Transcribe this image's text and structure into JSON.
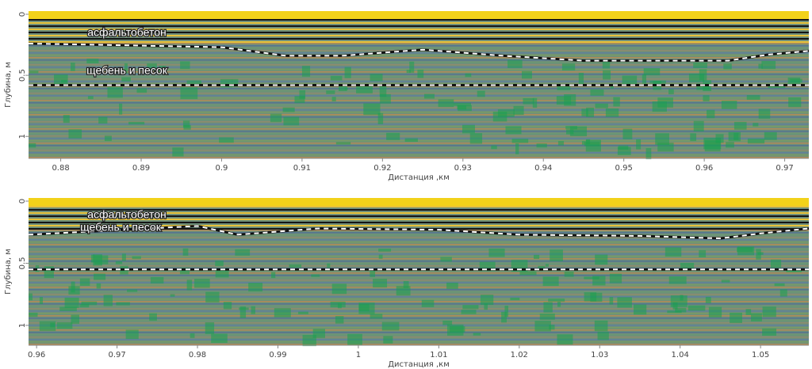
{
  "chart_data": [
    {
      "type": "line",
      "xlabel": "Дистанция ,км",
      "ylabel": "Глубина, м",
      "xlim": [
        0.876,
        0.973
      ],
      "ylim": [
        0,
        1.18
      ],
      "xticks": [
        0.88,
        0.89,
        0.9,
        0.91,
        0.92,
        0.93,
        0.94,
        0.95,
        0.96,
        0.97
      ],
      "yticks": [
        0,
        0.5,
        1
      ],
      "annotations": [
        "асфальтобетон",
        "щебень и песок"
      ],
      "x": [
        0.876,
        0.885,
        0.9,
        0.908,
        0.915,
        0.925,
        0.935,
        0.945,
        0.963,
        0.968,
        0.973
      ],
      "series": [
        {
          "color": "#ffffff",
          "values": [
            0.24,
            0.25,
            0.27,
            0.34,
            0.34,
            0.29,
            0.34,
            0.38,
            0.38,
            0.33,
            0.3
          ]
        },
        {
          "color": "#ffffff",
          "values": [
            0.58,
            0.58,
            0.58,
            0.58,
            0.58,
            0.58,
            0.58,
            0.58,
            0.58,
            0.58,
            0.58
          ]
        }
      ]
    },
    {
      "type": "line",
      "xlabel": "Дистанция ,км",
      "ylabel": "Глубина, м",
      "xlim": [
        0.959,
        1.056
      ],
      "ylim": [
        0,
        1.16
      ],
      "xticks": [
        0.96,
        0.97,
        0.98,
        0.99,
        1,
        1.01,
        1.02,
        1.03,
        1.04,
        1.05
      ],
      "yticks": [
        0,
        0.5,
        1
      ],
      "annotations": [
        "асфальтобетон",
        "щебень и песок"
      ],
      "x": [
        0.959,
        0.965,
        0.98,
        0.985,
        0.995,
        1.01,
        1.02,
        1.035,
        1.045,
        1.05,
        1.056
      ],
      "series": [
        {
          "color": "#ffffff",
          "values": [
            0.27,
            0.25,
            0.2,
            0.27,
            0.22,
            0.23,
            0.27,
            0.28,
            0.3,
            0.26,
            0.22
          ]
        },
        {
          "color": "#ffffff",
          "values": [
            0.55,
            0.55,
            0.55,
            0.55,
            0.55,
            0.55,
            0.55,
            0.55,
            0.55,
            0.55,
            0.55
          ]
        }
      ]
    }
  ]
}
